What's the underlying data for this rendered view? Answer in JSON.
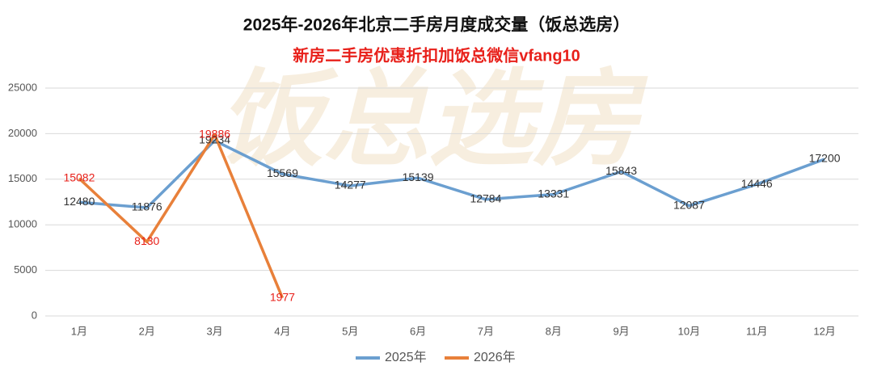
{
  "chart_data": {
    "type": "line",
    "title": "2025年-2026年北京二手房月度成交量（饭总选房）",
    "subtitle": "新房二手房优惠折扣加饭总微信vfang10",
    "watermark": "饭总选房",
    "categories": [
      "1月",
      "2月",
      "3月",
      "4月",
      "5月",
      "6月",
      "7月",
      "8月",
      "9月",
      "10月",
      "11月",
      "12月"
    ],
    "series": [
      {
        "name": "2025年",
        "color": "#6b9fd0",
        "label_color": "#333333",
        "values": [
          12480,
          11876,
          19234,
          15569,
          14277,
          15139,
          12784,
          13331,
          15843,
          12087,
          14446,
          17200
        ]
      },
      {
        "name": "2026年",
        "color": "#e8803a",
        "label_color": "#e8201a",
        "values": [
          15082,
          8130,
          19886,
          1977,
          null,
          null,
          null,
          null,
          null,
          null,
          null,
          null
        ]
      }
    ],
    "ylim": [
      0,
      25000
    ],
    "yticks": [
      0,
      5000,
      10000,
      15000,
      20000,
      25000
    ],
    "grid": true,
    "legend": "bottom"
  }
}
